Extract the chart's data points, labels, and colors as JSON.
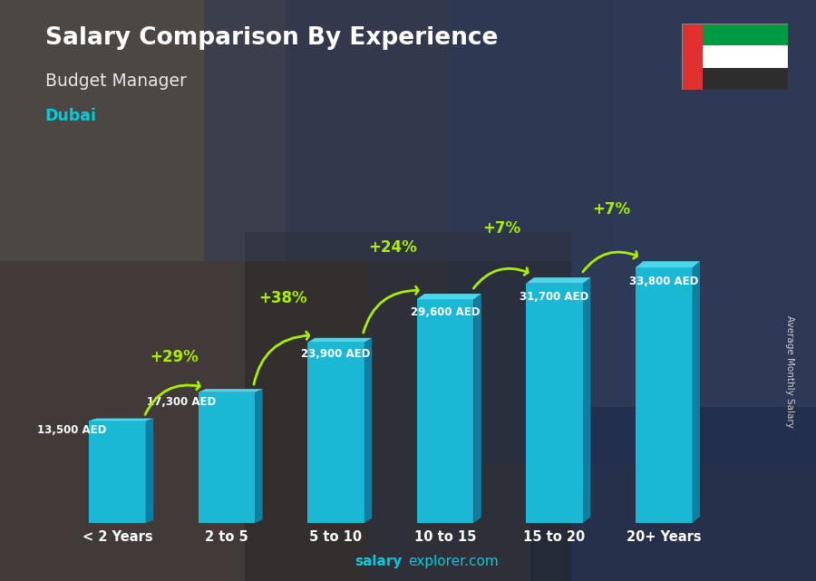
{
  "title": "Salary Comparison By Experience",
  "subtitle": "Budget Manager",
  "location": "Dubai",
  "categories": [
    "< 2 Years",
    "2 to 5",
    "5 to 10",
    "10 to 15",
    "15 to 20",
    "20+ Years"
  ],
  "values": [
    13500,
    17300,
    23900,
    29600,
    31700,
    33800
  ],
  "value_labels": [
    "13,500 AED",
    "17,300 AED",
    "23,900 AED",
    "29,600 AED",
    "31,700 AED",
    "33,800 AED"
  ],
  "pct_labels": [
    "+29%",
    "+38%",
    "+24%",
    "+7%",
    "+7%"
  ],
  "bar_color_front": "#1ab8d4",
  "bar_color_side": "#0e7fa0",
  "bar_color_top": "#4dd6ea",
  "bg_color": "#3a3a4a",
  "title_color": "#ffffff",
  "subtitle_color": "#e8e8e8",
  "location_color": "#00ccdd",
  "value_label_color": "#ffffff",
  "pct_color": "#aaee00",
  "xtick_color": "#ffffff",
  "footer_bold": "salary",
  "footer_normal": "explorer.com",
  "footer_color": "#00ccdd",
  "ylabel_text": "Average Monthly Salary",
  "ylim": [
    0,
    40000
  ],
  "flag_colors": [
    "#009a44",
    "#ffffff",
    "#2d2d2d"
  ],
  "flag_red": "#e03030"
}
